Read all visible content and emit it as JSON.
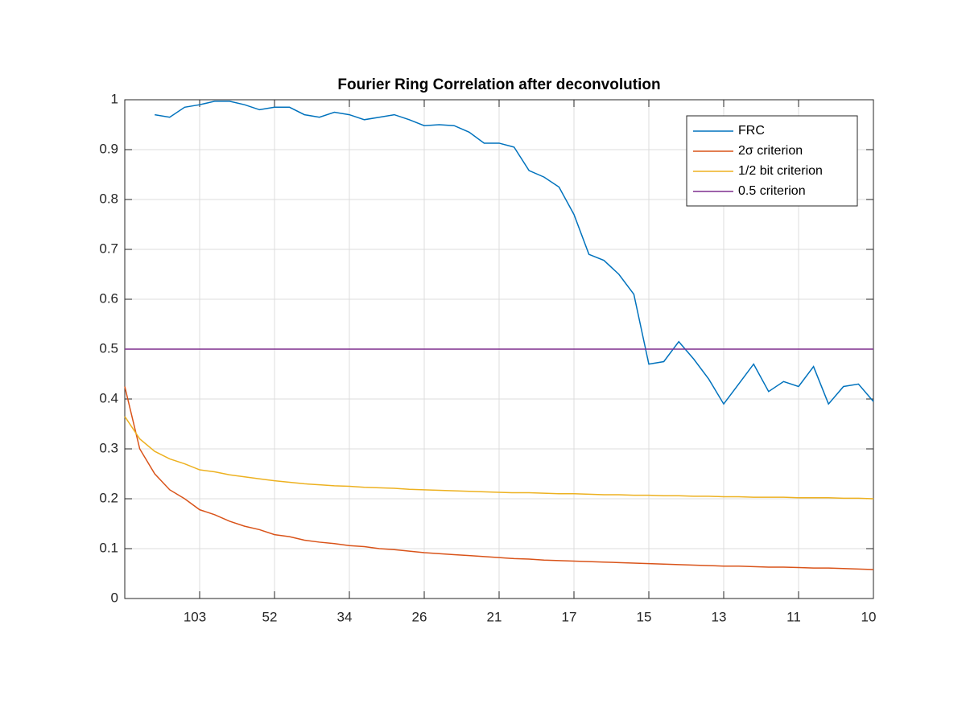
{
  "chart_data": {
    "type": "line",
    "title": "Fourier Ring Correlation after deconvolution",
    "x": [
      0,
      0.2,
      0.4,
      0.6,
      0.8,
      1,
      1.2,
      1.4,
      1.6,
      1.8,
      2,
      2.2,
      2.4,
      2.6,
      2.8,
      3,
      3.2,
      3.4,
      3.6,
      3.8,
      4,
      4.2,
      4.4,
      4.6,
      4.8,
      5,
      5.2,
      5.4,
      5.6,
      5.8,
      6,
      6.2,
      6.4,
      6.6,
      6.8,
      7,
      7.2,
      7.4,
      7.6,
      7.8,
      8,
      8.2,
      8.4,
      8.6,
      8.8,
      9,
      9.2,
      9.4,
      9.6,
      9.8,
      10
    ],
    "series": [
      {
        "name": "FRC",
        "color": "#0072bd",
        "values": [
          null,
          null,
          0.97,
          0.965,
          0.985,
          0.99,
          0.997,
          0.997,
          0.99,
          0.98,
          0.985,
          0.985,
          0.97,
          0.965,
          0.975,
          0.97,
          0.96,
          0.965,
          0.97,
          0.96,
          0.948,
          0.95,
          0.948,
          0.935,
          0.913,
          0.913,
          0.905,
          0.858,
          0.845,
          0.825,
          0.77,
          0.69,
          0.678,
          0.65,
          0.61,
          0.47,
          0.475,
          0.515,
          0.48,
          0.44,
          0.39,
          0.43,
          0.47,
          0.415,
          0.435,
          0.425,
          0.465,
          0.39,
          0.425,
          0.43,
          0.395
        ]
      },
      {
        "name": "2σ criterion",
        "color": "#d95319",
        "values": [
          0.425,
          0.3,
          0.25,
          0.218,
          0.2,
          0.178,
          0.168,
          0.155,
          0.145,
          0.138,
          0.128,
          0.124,
          0.117,
          0.113,
          0.11,
          0.106,
          0.104,
          0.1,
          0.098,
          0.095,
          0.092,
          0.09,
          0.088,
          0.086,
          0.084,
          0.082,
          0.08,
          0.079,
          0.077,
          0.076,
          0.075,
          0.074,
          0.073,
          0.072,
          0.071,
          0.07,
          0.069,
          0.068,
          0.067,
          0.066,
          0.065,
          0.065,
          0.064,
          0.063,
          0.063,
          0.062,
          0.061,
          0.061,
          0.06,
          0.059,
          0.058
        ]
      },
      {
        "name": "1/2 bit criterion",
        "color": "#edb120",
        "values": [
          0.365,
          0.32,
          0.295,
          0.28,
          0.27,
          0.258,
          0.254,
          0.248,
          0.244,
          0.24,
          0.236,
          0.233,
          0.23,
          0.228,
          0.226,
          0.225,
          0.223,
          0.222,
          0.221,
          0.219,
          0.218,
          0.217,
          0.216,
          0.215,
          0.214,
          0.213,
          0.212,
          0.212,
          0.211,
          0.21,
          0.21,
          0.209,
          0.208,
          0.208,
          0.207,
          0.207,
          0.206,
          0.206,
          0.205,
          0.205,
          0.204,
          0.204,
          0.203,
          0.203,
          0.203,
          0.202,
          0.202,
          0.202,
          0.201,
          0.201,
          0.2
        ]
      },
      {
        "name": "0.5 criterion",
        "color": "#7e2f8e",
        "x": [
          0,
          10
        ],
        "values": [
          0.5,
          0.5
        ]
      }
    ],
    "xlim": [
      0,
      10
    ],
    "xticks": [
      {
        "value": 1,
        "label": "103"
      },
      {
        "value": 2,
        "label": "52"
      },
      {
        "value": 3,
        "label": "34"
      },
      {
        "value": 4,
        "label": "26"
      },
      {
        "value": 5,
        "label": "21"
      },
      {
        "value": 6,
        "label": "17"
      },
      {
        "value": 7,
        "label": "15"
      },
      {
        "value": 8,
        "label": "13"
      },
      {
        "value": 9,
        "label": "11"
      },
      {
        "value": 10,
        "label": "10"
      }
    ],
    "ylim": [
      0,
      1
    ],
    "yticks": [
      0,
      0.1,
      0.2,
      0.3,
      0.4,
      0.5,
      0.6,
      0.7,
      0.8,
      0.9,
      1
    ],
    "grid": true,
    "legend": "northeast"
  }
}
